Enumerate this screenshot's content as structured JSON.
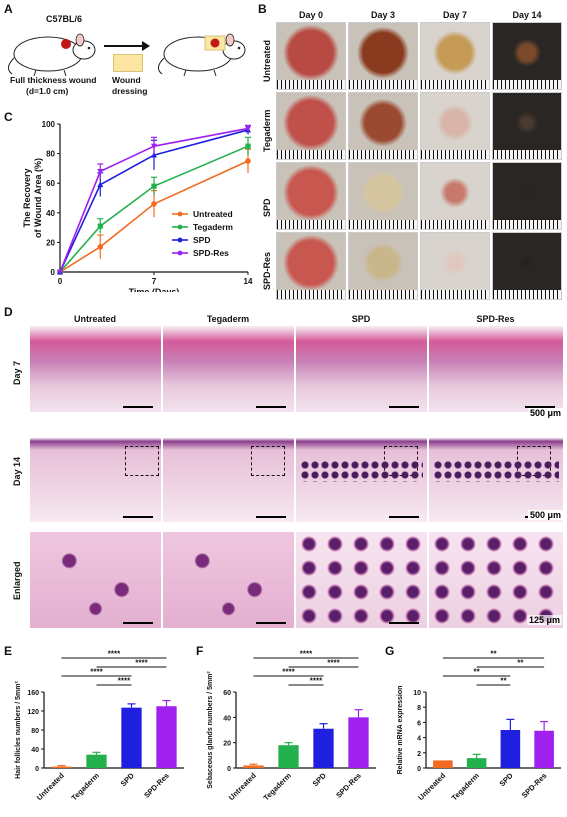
{
  "panels": {
    "A": "A",
    "B": "B",
    "C": "C",
    "D": "D",
    "E": "E",
    "F": "F",
    "G": "G"
  },
  "panelA": {
    "strain": "C57BL/6",
    "left_caption": "Full thickness wound",
    "left_caption2": "(d=1.0 cm)",
    "arrow_caption1": "Wound",
    "arrow_caption2": "dressing"
  },
  "panelB": {
    "columns": [
      "Day 0",
      "Day 3",
      "Day 7",
      "Day 14"
    ],
    "rows": [
      "Untreated",
      "Tegaderm",
      "SPD",
      "SPD-Res"
    ]
  },
  "panelD": {
    "columns": [
      "Untreated",
      "Tegaderm",
      "SPD",
      "SPD-Res"
    ],
    "rows": [
      "Day 7",
      "Day 14",
      "Enlarged"
    ],
    "scale1": "500 μm",
    "scale2": "500 μm",
    "scale3": "125 μm"
  },
  "colors": {
    "untreated": "#f26b21",
    "tegaderm": "#22b14c",
    "spd": "#1f1fe0",
    "spdres": "#a020f0"
  },
  "chart_data": [
    {
      "id": "C",
      "type": "line",
      "xlabel": "Time (Days)",
      "ylabel": "The Recovery of Wound Area (%)",
      "ylabel1": "The Recovery",
      "ylabel2": "of Wound Area (%)",
      "x": [
        0,
        3,
        7,
        14
      ],
      "xticks": [
        "0",
        "7",
        "14"
      ],
      "yticks": [
        "0",
        "20",
        "40",
        "60",
        "80",
        "100"
      ],
      "ylim": [
        0,
        100
      ],
      "xlim": [
        0,
        14
      ],
      "series": [
        {
          "name": "Untreated",
          "values": [
            0,
            17,
            46,
            75
          ],
          "err": [
            0,
            8,
            9,
            8
          ]
        },
        {
          "name": "Tegaderm",
          "values": [
            0,
            31,
            58,
            85
          ],
          "err": [
            0,
            5,
            6,
            6
          ]
        },
        {
          "name": "SPD",
          "values": [
            0,
            59,
            79,
            96
          ],
          "err": [
            0,
            8,
            10,
            3
          ]
        },
        {
          "name": "SPD-Res",
          "values": [
            0,
            68,
            85,
            97
          ],
          "err": [
            0,
            5,
            6,
            2
          ]
        }
      ],
      "legend": "bottom-right"
    },
    {
      "id": "E",
      "type": "bar",
      "ylabel": "Hair follicles numbers / 5mm²",
      "categories": [
        "Untreated",
        "Tegaderm",
        "SPD",
        "SPD-Res"
      ],
      "values": [
        3,
        28,
        127,
        130
      ],
      "err": [
        2,
        5,
        8,
        12
      ],
      "ylim": [
        0,
        160
      ],
      "yticks": [
        "0",
        "40",
        "80",
        "120",
        "160"
      ],
      "significance": [
        "****",
        "****",
        "****",
        "****"
      ]
    },
    {
      "id": "F",
      "type": "bar",
      "ylabel": "Sebaceous glands numbers / 5mm²",
      "categories": [
        "Untreated",
        "Tegaderm",
        "SPD",
        "SPD-Res"
      ],
      "values": [
        2,
        18,
        31,
        40
      ],
      "err": [
        1,
        2,
        4,
        6
      ],
      "ylim": [
        0,
        60
      ],
      "yticks": [
        "0",
        "20",
        "40",
        "60"
      ],
      "significance": [
        "****",
        "****",
        "****",
        "****"
      ]
    },
    {
      "id": "G",
      "type": "bar",
      "ylabel": "Relative mRNA expression",
      "categories": [
        "Untreated",
        "Tegaderm",
        "SPD",
        "SPD-Res"
      ],
      "values": [
        1.0,
        1.3,
        5.0,
        4.9
      ],
      "err": [
        0,
        0.5,
        1.4,
        1.2
      ],
      "ylim": [
        0,
        10
      ],
      "yticks": [
        "0",
        "2",
        "4",
        "6",
        "8",
        "10"
      ],
      "significance": [
        "**",
        "**",
        "**",
        "**"
      ]
    }
  ]
}
